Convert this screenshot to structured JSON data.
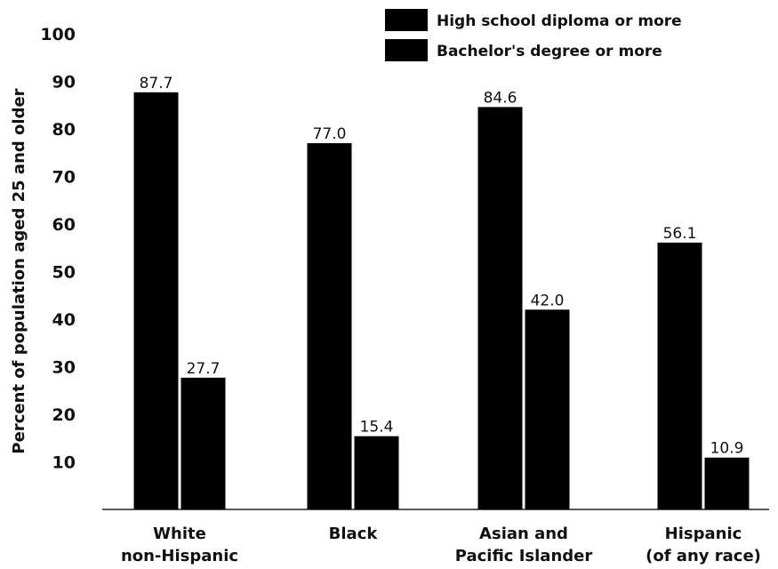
{
  "chart_data": {
    "type": "bar",
    "categories": [
      [
        "White",
        "non-Hispanic"
      ],
      [
        "Black"
      ],
      [
        "Asian and",
        "Pacific Islander"
      ],
      [
        "Hispanic",
        "(of any race)"
      ]
    ],
    "series": [
      {
        "name": "High school diploma or more",
        "values": [
          87.7,
          77.0,
          84.6,
          56.1
        ],
        "labels": [
          "87.7",
          "77.0",
          "84.6",
          "56.1"
        ],
        "color": "#000000"
      },
      {
        "name": "Bachelor's degree or more",
        "values": [
          27.7,
          15.4,
          42.0,
          10.9
        ],
        "labels": [
          "27.7",
          "15.4",
          "42.0",
          "10.9"
        ],
        "color": "#000000"
      }
    ],
    "ylabel": "Percent of population aged 25 and older",
    "ylim": [
      0,
      100
    ],
    "yticks": [
      10,
      20,
      30,
      40,
      50,
      60,
      70,
      80,
      90,
      100
    ],
    "grid": false,
    "legend_position": "top-right"
  }
}
